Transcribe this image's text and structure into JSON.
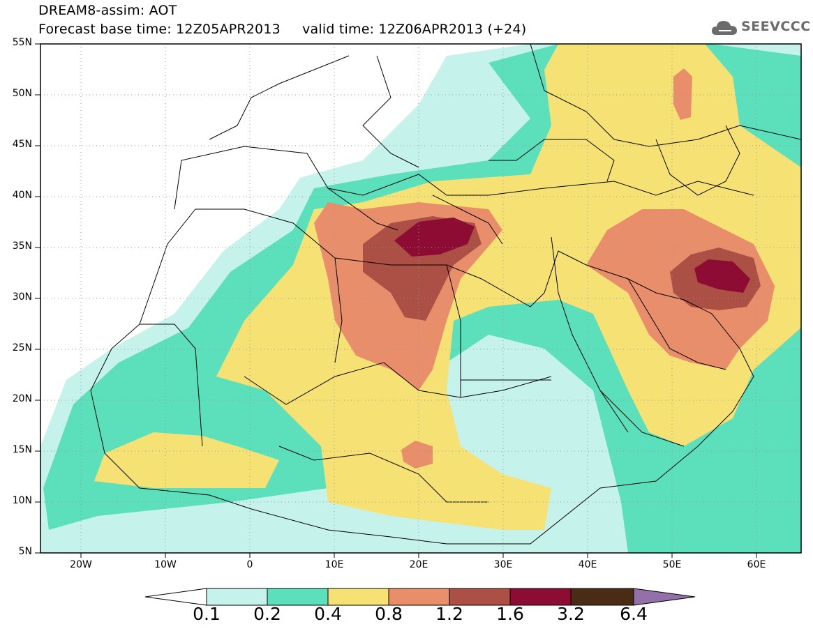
{
  "header": {
    "line1": "DREAM8-assim: AOT",
    "line2": "Forecast base time: 12Z05APR2013     valid time: 12Z06APR2013 (+24)",
    "logo_text": "SEEVCCC"
  },
  "map": {
    "lat_labels": [
      "55N",
      "50N",
      "45N",
      "40N",
      "35N",
      "30N",
      "25N",
      "20N",
      "15N",
      "10N",
      "5N"
    ],
    "lon_labels": [
      "20W",
      "10W",
      "0",
      "10E",
      "20E",
      "30E",
      "40E",
      "50E",
      "60E"
    ],
    "colors": {
      "c01": "#c6f2ec",
      "c02": "#5ce0bb",
      "c04": "#f6e274",
      "c08": "#e88e6a",
      "c12": "#ac4f45",
      "c16": "#8c0c34",
      "c32": "#4a2c14",
      "c64": "#9370a8"
    }
  },
  "legend": {
    "labels": [
      "0.1",
      "0.2",
      "0.4",
      "0.8",
      "1.2",
      "1.6",
      "3.2",
      "6.4"
    ]
  }
}
